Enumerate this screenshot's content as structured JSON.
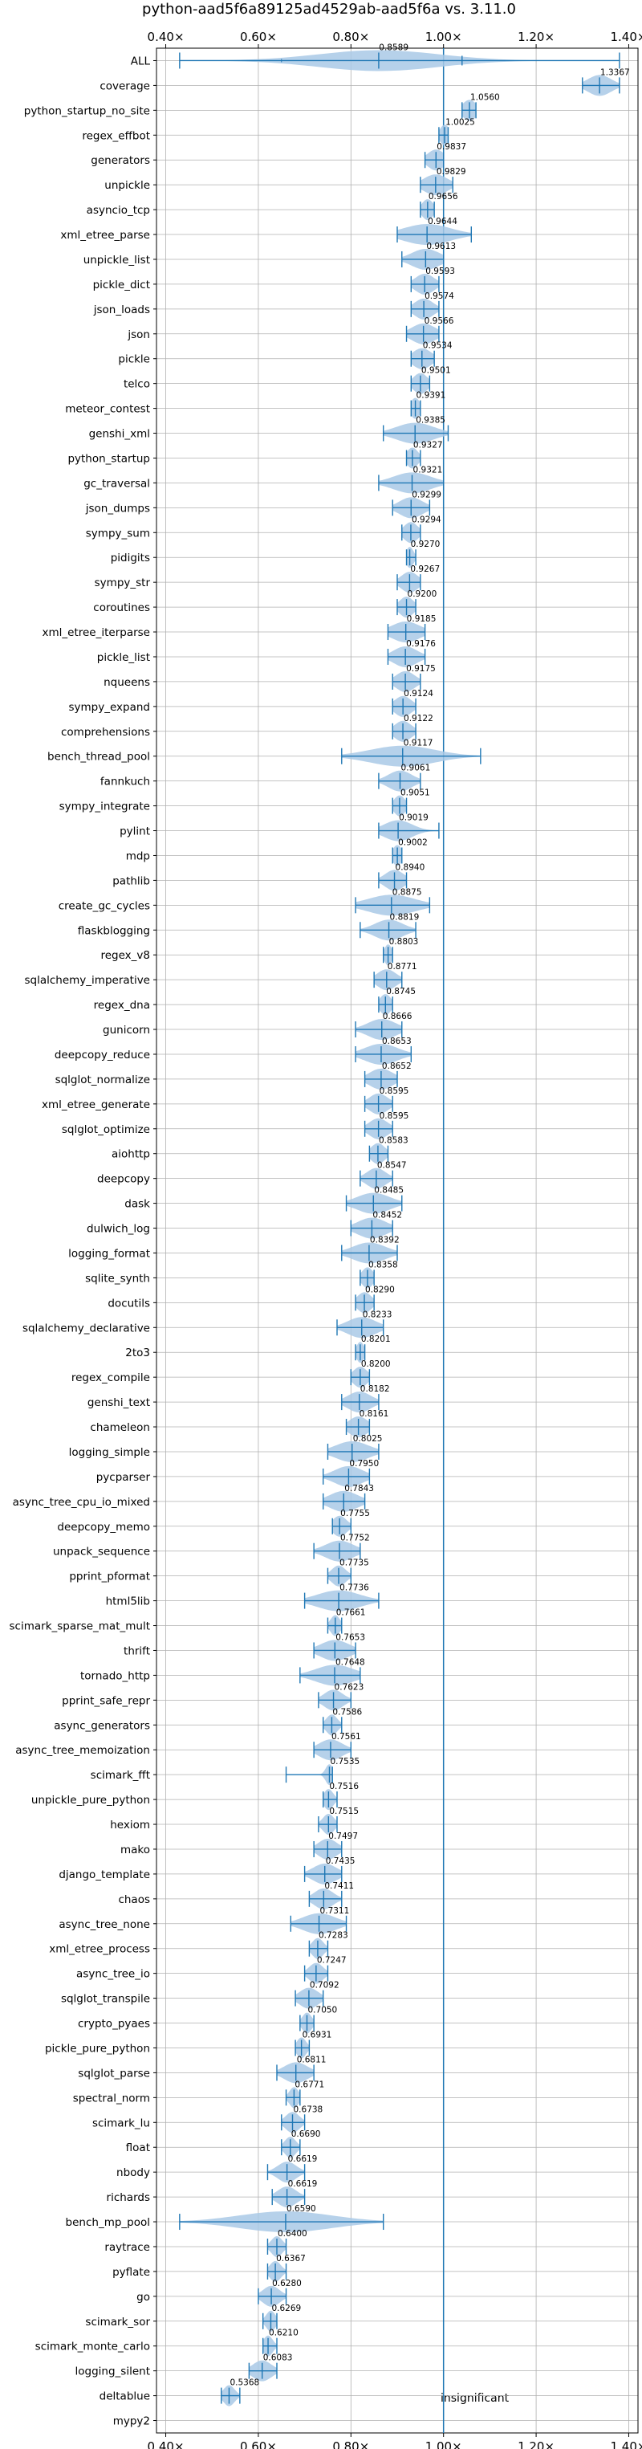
{
  "chart_data": {
    "type": "violin",
    "title": "python-aad5f6a89125ad4529ab-aad5f6a vs. 3.11.0",
    "xlim": [
      0.38,
      1.42
    ],
    "x_ticks": [
      0.4,
      0.6,
      0.8,
      1.0,
      1.2,
      1.4
    ],
    "x_tick_labels": [
      "0.40×",
      "0.60×",
      "0.80×",
      "1.00×",
      "1.20×",
      "1.40×"
    ],
    "reference_line": 1.0,
    "grid": true,
    "annotation": "insignificant",
    "colors": {
      "violin": "#a9c9e6",
      "errorbar": "#1f77b4",
      "reference": "#1f77b4",
      "grid": "#b0b0b0"
    },
    "benchmarks": [
      {
        "name": "ALL",
        "value": 0.8589,
        "label": "0.8589",
        "min": 0.43,
        "max": 1.38,
        "p_low": 0.65,
        "p_high": 1.04,
        "spread": 0.13,
        "mean": 0.86
      },
      {
        "name": "coverage",
        "value": 1.3367,
        "label": "1.3367",
        "min": 1.3,
        "max": 1.38,
        "spread": 0.025,
        "mean": 1.337
      },
      {
        "name": "python_startup_no_site",
        "value": 1.056,
        "label": "1.0560",
        "min": 1.04,
        "max": 1.07,
        "spread": 0.015,
        "mean": 1.056
      },
      {
        "name": "regex_effbot",
        "value": 1.0025,
        "label": "1.0025",
        "min": 0.99,
        "max": 1.01,
        "spread": 0.01,
        "mean": 1.0025
      },
      {
        "name": "generators",
        "value": 0.9837,
        "label": "0.9837",
        "min": 0.96,
        "max": 1.0,
        "spread": 0.018,
        "mean": 0.9837
      },
      {
        "name": "unpickle",
        "value": 0.9829,
        "label": "0.9829",
        "min": 0.95,
        "max": 1.02,
        "spread": 0.025,
        "mean": 0.9829
      },
      {
        "name": "asyncio_tcp",
        "value": 0.9656,
        "label": "0.9656",
        "min": 0.95,
        "max": 0.98,
        "spread": 0.012,
        "mean": 0.9656
      },
      {
        "name": "xml_etree_parse",
        "value": 0.9644,
        "label": "0.9644",
        "min": 0.9,
        "max": 1.06,
        "spread": 0.05,
        "mean": 0.9644
      },
      {
        "name": "unpickle_list",
        "value": 0.9613,
        "label": "0.9613",
        "min": 0.91,
        "max": 1.0,
        "spread": 0.03,
        "mean": 0.9613
      },
      {
        "name": "pickle_dict",
        "value": 0.9593,
        "label": "0.9593",
        "min": 0.93,
        "max": 0.99,
        "spread": 0.02,
        "mean": 0.9593
      },
      {
        "name": "json_loads",
        "value": 0.9574,
        "label": "0.9574",
        "min": 0.93,
        "max": 0.99,
        "spread": 0.02,
        "mean": 0.9574
      },
      {
        "name": "json",
        "value": 0.9566,
        "label": "0.9566",
        "min": 0.92,
        "max": 0.99,
        "spread": 0.025,
        "mean": 0.9566
      },
      {
        "name": "pickle",
        "value": 0.9534,
        "label": "0.9534",
        "min": 0.93,
        "max": 0.98,
        "spread": 0.02,
        "mean": 0.9534
      },
      {
        "name": "telco",
        "value": 0.9501,
        "label": "0.9501",
        "min": 0.93,
        "max": 0.97,
        "spread": 0.015,
        "mean": 0.9501
      },
      {
        "name": "meteor_contest",
        "value": 0.9391,
        "label": "0.9391",
        "min": 0.93,
        "max": 0.95,
        "spread": 0.01,
        "mean": 0.9391
      },
      {
        "name": "genshi_xml",
        "value": 0.9385,
        "label": "0.9385",
        "min": 0.87,
        "max": 1.01,
        "spread": 0.04,
        "mean": 0.9385
      },
      {
        "name": "python_startup",
        "value": 0.9327,
        "label": "0.9327",
        "min": 0.92,
        "max": 0.95,
        "spread": 0.012,
        "mean": 0.9327
      },
      {
        "name": "gc_traversal",
        "value": 0.9321,
        "label": "0.9321",
        "min": 0.86,
        "max": 1.0,
        "spread": 0.04,
        "mean": 0.9321
      },
      {
        "name": "json_dumps",
        "value": 0.9299,
        "label": "0.9299",
        "min": 0.89,
        "max": 0.97,
        "spread": 0.025,
        "mean": 0.9299
      },
      {
        "name": "sympy_sum",
        "value": 0.9294,
        "label": "0.9294",
        "min": 0.91,
        "max": 0.95,
        "spread": 0.015,
        "mean": 0.9294
      },
      {
        "name": "pidigits",
        "value": 0.927,
        "label": "0.9270",
        "min": 0.92,
        "max": 0.94,
        "spread": 0.008,
        "mean": 0.927
      },
      {
        "name": "sympy_str",
        "value": 0.9267,
        "label": "0.9267",
        "min": 0.9,
        "max": 0.95,
        "spread": 0.018,
        "mean": 0.9267
      },
      {
        "name": "coroutines",
        "value": 0.92,
        "label": "0.9200",
        "min": 0.9,
        "max": 0.94,
        "spread": 0.015,
        "mean": 0.92
      },
      {
        "name": "xml_etree_iterparse",
        "value": 0.9185,
        "label": "0.9185",
        "min": 0.88,
        "max": 0.96,
        "spread": 0.03,
        "mean": 0.9185
      },
      {
        "name": "pickle_list",
        "value": 0.9176,
        "label": "0.9176",
        "min": 0.88,
        "max": 0.96,
        "spread": 0.025,
        "mean": 0.9176
      },
      {
        "name": "nqueens",
        "value": 0.9175,
        "label": "0.9175",
        "min": 0.89,
        "max": 0.95,
        "spread": 0.02,
        "mean": 0.9175
      },
      {
        "name": "sympy_expand",
        "value": 0.9124,
        "label": "0.9124",
        "min": 0.89,
        "max": 0.94,
        "spread": 0.018,
        "mean": 0.9124
      },
      {
        "name": "comprehensions",
        "value": 0.9122,
        "label": "0.9122",
        "min": 0.89,
        "max": 0.94,
        "spread": 0.018,
        "mean": 0.9122
      },
      {
        "name": "bench_thread_pool",
        "value": 0.9117,
        "label": "0.9117",
        "min": 0.78,
        "max": 1.08,
        "spread": 0.07,
        "mean": 0.9117
      },
      {
        "name": "fannkuch",
        "value": 0.9061,
        "label": "0.9061",
        "min": 0.86,
        "max": 0.95,
        "spread": 0.025,
        "mean": 0.9061
      },
      {
        "name": "sympy_integrate",
        "value": 0.9051,
        "label": "0.9051",
        "min": 0.89,
        "max": 0.92,
        "spread": 0.012,
        "mean": 0.9051
      },
      {
        "name": "pylint",
        "value": 0.9019,
        "label": "0.9019",
        "min": 0.86,
        "max": 0.99,
        "spread": 0.03,
        "mean": 0.9019
      },
      {
        "name": "mdp",
        "value": 0.9002,
        "label": "0.9002",
        "min": 0.89,
        "max": 0.91,
        "spread": 0.01,
        "mean": 0.9002
      },
      {
        "name": "pathlib",
        "value": 0.894,
        "label": "0.8940",
        "min": 0.86,
        "max": 0.92,
        "spread": 0.02,
        "mean": 0.894
      },
      {
        "name": "create_gc_cycles",
        "value": 0.8875,
        "label": "0.8875",
        "min": 0.81,
        "max": 0.97,
        "spread": 0.05,
        "mean": 0.8875
      },
      {
        "name": "flaskblogging",
        "value": 0.8819,
        "label": "0.8819",
        "min": 0.82,
        "max": 0.94,
        "spread": 0.03,
        "mean": 0.8819
      },
      {
        "name": "regex_v8",
        "value": 0.8803,
        "label": "0.8803",
        "min": 0.87,
        "max": 0.89,
        "spread": 0.008,
        "mean": 0.8803
      },
      {
        "name": "sqlalchemy_imperative",
        "value": 0.8771,
        "label": "0.8771",
        "min": 0.85,
        "max": 0.91,
        "spread": 0.02,
        "mean": 0.8771
      },
      {
        "name": "regex_dna",
        "value": 0.8745,
        "label": "0.8745",
        "min": 0.86,
        "max": 0.89,
        "spread": 0.012,
        "mean": 0.8745
      },
      {
        "name": "gunicorn",
        "value": 0.8666,
        "label": "0.8666",
        "min": 0.81,
        "max": 0.91,
        "spread": 0.03,
        "mean": 0.8666
      },
      {
        "name": "deepcopy_reduce",
        "value": 0.8653,
        "label": "0.8653",
        "min": 0.81,
        "max": 0.93,
        "spread": 0.035,
        "mean": 0.8653
      },
      {
        "name": "sqlglot_normalize",
        "value": 0.8652,
        "label": "0.8652",
        "min": 0.83,
        "max": 0.9,
        "spread": 0.025,
        "mean": 0.8652
      },
      {
        "name": "xml_etree_generate",
        "value": 0.8595,
        "label": "0.8595",
        "min": 0.83,
        "max": 0.89,
        "spread": 0.02,
        "mean": 0.8595
      },
      {
        "name": "sqlglot_optimize",
        "value": 0.8595,
        "label": "0.8595",
        "min": 0.83,
        "max": 0.89,
        "spread": 0.02,
        "mean": 0.8595
      },
      {
        "name": "aiohttp",
        "value": 0.8583,
        "label": "0.8583",
        "min": 0.84,
        "max": 0.88,
        "spread": 0.015,
        "mean": 0.8583
      },
      {
        "name": "deepcopy",
        "value": 0.8547,
        "label": "0.8547",
        "min": 0.82,
        "max": 0.89,
        "spread": 0.02,
        "mean": 0.8547
      },
      {
        "name": "dask",
        "value": 0.8485,
        "label": "0.8485",
        "min": 0.79,
        "max": 0.91,
        "spread": 0.035,
        "mean": 0.8485
      },
      {
        "name": "dulwich_log",
        "value": 0.8452,
        "label": "0.8452",
        "min": 0.8,
        "max": 0.89,
        "spread": 0.03,
        "mean": 0.8452
      },
      {
        "name": "logging_format",
        "value": 0.8392,
        "label": "0.8392",
        "min": 0.78,
        "max": 0.9,
        "spread": 0.035,
        "mean": 0.8392
      },
      {
        "name": "sqlite_synth",
        "value": 0.8358,
        "label": "0.8358",
        "min": 0.82,
        "max": 0.85,
        "spread": 0.012,
        "mean": 0.8358
      },
      {
        "name": "docutils",
        "value": 0.829,
        "label": "0.8290",
        "min": 0.81,
        "max": 0.85,
        "spread": 0.015,
        "mean": 0.829
      },
      {
        "name": "sqlalchemy_declarative",
        "value": 0.8233,
        "label": "0.8233",
        "min": 0.77,
        "max": 0.87,
        "spread": 0.03,
        "mean": 0.8233
      },
      {
        "name": "2to3",
        "value": 0.8201,
        "label": "0.8201",
        "min": 0.81,
        "max": 0.83,
        "spread": 0.008,
        "mean": 0.8201
      },
      {
        "name": "regex_compile",
        "value": 0.82,
        "label": "0.8200",
        "min": 0.8,
        "max": 0.84,
        "spread": 0.015,
        "mean": 0.82
      },
      {
        "name": "genshi_text",
        "value": 0.8182,
        "label": "0.8182",
        "min": 0.78,
        "max": 0.86,
        "spread": 0.025,
        "mean": 0.8182
      },
      {
        "name": "chameleon",
        "value": 0.8161,
        "label": "0.8161",
        "min": 0.79,
        "max": 0.84,
        "spread": 0.02,
        "mean": 0.8161
      },
      {
        "name": "logging_simple",
        "value": 0.8025,
        "label": "0.8025",
        "min": 0.75,
        "max": 0.86,
        "spread": 0.035,
        "mean": 0.8025
      },
      {
        "name": "pycparser",
        "value": 0.795,
        "label": "0.7950",
        "min": 0.74,
        "max": 0.84,
        "spread": 0.03,
        "mean": 0.795
      },
      {
        "name": "async_tree_cpu_io_mixed",
        "value": 0.7843,
        "label": "0.7843",
        "min": 0.74,
        "max": 0.83,
        "spread": 0.03,
        "mean": 0.7843
      },
      {
        "name": "deepcopy_memo",
        "value": 0.7755,
        "label": "0.7755",
        "min": 0.76,
        "max": 0.8,
        "spread": 0.015,
        "mean": 0.7755
      },
      {
        "name": "unpack_sequence",
        "value": 0.7752,
        "label": "0.7752",
        "min": 0.72,
        "max": 0.82,
        "spread": 0.03,
        "mean": 0.7752
      },
      {
        "name": "pprint_pformat",
        "value": 0.7735,
        "label": "0.7735",
        "min": 0.75,
        "max": 0.8,
        "spread": 0.015,
        "mean": 0.7735
      },
      {
        "name": "html5lib",
        "value": 0.7736,
        "label": "0.7736",
        "min": 0.7,
        "max": 0.86,
        "spread": 0.045,
        "mean": 0.7736
      },
      {
        "name": "scimark_sparse_mat_mult",
        "value": 0.7661,
        "label": "0.7661",
        "min": 0.75,
        "max": 0.78,
        "spread": 0.01,
        "mean": 0.7661
      },
      {
        "name": "thrift",
        "value": 0.7653,
        "label": "0.7653",
        "min": 0.72,
        "max": 0.81,
        "spread": 0.03,
        "mean": 0.7653
      },
      {
        "name": "tornado_http",
        "value": 0.7648,
        "label": "0.7648",
        "min": 0.69,
        "max": 0.82,
        "spread": 0.04,
        "mean": 0.7648
      },
      {
        "name": "pprint_safe_repr",
        "value": 0.7623,
        "label": "0.7623",
        "min": 0.73,
        "max": 0.8,
        "spread": 0.02,
        "mean": 0.7623
      },
      {
        "name": "async_generators",
        "value": 0.7586,
        "label": "0.7586",
        "min": 0.74,
        "max": 0.78,
        "spread": 0.012,
        "mean": 0.7586
      },
      {
        "name": "async_tree_memoization",
        "value": 0.7561,
        "label": "0.7561",
        "min": 0.72,
        "max": 0.8,
        "spread": 0.025,
        "mean": 0.7561
      },
      {
        "name": "scimark_fft",
        "value": 0.7535,
        "label": "0.7535",
        "min": 0.66,
        "max": 0.76,
        "spread": 0.008,
        "mean": 0.7535
      },
      {
        "name": "unpickle_pure_python",
        "value": 0.7516,
        "label": "0.7516",
        "min": 0.74,
        "max": 0.77,
        "spread": 0.01,
        "mean": 0.7516
      },
      {
        "name": "hexiom",
        "value": 0.7515,
        "label": "0.7515",
        "min": 0.73,
        "max": 0.77,
        "spread": 0.012,
        "mean": 0.7515
      },
      {
        "name": "mako",
        "value": 0.7497,
        "label": "0.7497",
        "min": 0.72,
        "max": 0.78,
        "spread": 0.02,
        "mean": 0.7497
      },
      {
        "name": "django_template",
        "value": 0.7435,
        "label": "0.7435",
        "min": 0.7,
        "max": 0.78,
        "spread": 0.025,
        "mean": 0.7435
      },
      {
        "name": "chaos",
        "value": 0.7411,
        "label": "0.7411",
        "min": 0.71,
        "max": 0.78,
        "spread": 0.02,
        "mean": 0.7411
      },
      {
        "name": "async_tree_none",
        "value": 0.7311,
        "label": "0.7311",
        "min": 0.67,
        "max": 0.79,
        "spread": 0.035,
        "mean": 0.7311
      },
      {
        "name": "xml_etree_process",
        "value": 0.7283,
        "label": "0.7283",
        "min": 0.71,
        "max": 0.75,
        "spread": 0.012,
        "mean": 0.7283
      },
      {
        "name": "async_tree_io",
        "value": 0.7247,
        "label": "0.7247",
        "min": 0.7,
        "max": 0.75,
        "spread": 0.015,
        "mean": 0.7247
      },
      {
        "name": "sqlglot_transpile",
        "value": 0.7092,
        "label": "0.7092",
        "min": 0.68,
        "max": 0.74,
        "spread": 0.02,
        "mean": 0.7092
      },
      {
        "name": "crypto_pyaes",
        "value": 0.705,
        "label": "0.7050",
        "min": 0.69,
        "max": 0.72,
        "spread": 0.01,
        "mean": 0.705
      },
      {
        "name": "pickle_pure_python",
        "value": 0.6931,
        "label": "0.6931",
        "min": 0.68,
        "max": 0.71,
        "spread": 0.01,
        "mean": 0.6931
      },
      {
        "name": "sqlglot_parse",
        "value": 0.6811,
        "label": "0.6811",
        "min": 0.64,
        "max": 0.72,
        "spread": 0.025,
        "mean": 0.6811
      },
      {
        "name": "spectral_norm",
        "value": 0.6771,
        "label": "0.6771",
        "min": 0.66,
        "max": 0.69,
        "spread": 0.01,
        "mean": 0.6771
      },
      {
        "name": "scimark_lu",
        "value": 0.6738,
        "label": "0.6738",
        "min": 0.65,
        "max": 0.7,
        "spread": 0.015,
        "mean": 0.6738
      },
      {
        "name": "float",
        "value": 0.669,
        "label": "0.6690",
        "min": 0.65,
        "max": 0.69,
        "spread": 0.012,
        "mean": 0.669
      },
      {
        "name": "nbody",
        "value": 0.6619,
        "label": "0.6619",
        "min": 0.62,
        "max": 0.7,
        "spread": 0.02,
        "mean": 0.6619
      },
      {
        "name": "richards",
        "value": 0.6619,
        "label": "0.6619",
        "min": 0.63,
        "max": 0.7,
        "spread": 0.02,
        "mean": 0.6619
      },
      {
        "name": "bench_mp_pool",
        "value": 0.659,
        "label": "0.6590",
        "min": 0.43,
        "max": 0.87,
        "spread": 0.1,
        "mean": 0.659
      },
      {
        "name": "raytrace",
        "value": 0.64,
        "label": "0.6400",
        "min": 0.62,
        "max": 0.66,
        "spread": 0.012,
        "mean": 0.64
      },
      {
        "name": "pyflate",
        "value": 0.6367,
        "label": "0.6367",
        "min": 0.62,
        "max": 0.66,
        "spread": 0.012,
        "mean": 0.6367
      },
      {
        "name": "go",
        "value": 0.628,
        "label": "0.6280",
        "min": 0.6,
        "max": 0.66,
        "spread": 0.018,
        "mean": 0.628
      },
      {
        "name": "scimark_sor",
        "value": 0.6269,
        "label": "0.6269",
        "min": 0.61,
        "max": 0.64,
        "spread": 0.01,
        "mean": 0.6269
      },
      {
        "name": "scimark_monte_carlo",
        "value": 0.621,
        "label": "0.6210",
        "min": 0.61,
        "max": 0.64,
        "spread": 0.01,
        "mean": 0.621
      },
      {
        "name": "logging_silent",
        "value": 0.6083,
        "label": "0.6083",
        "min": 0.58,
        "max": 0.64,
        "spread": 0.02,
        "mean": 0.6083
      },
      {
        "name": "deltablue",
        "value": 0.5368,
        "label": "0.5368",
        "min": 0.52,
        "max": 0.56,
        "spread": 0.012,
        "mean": 0.5368
      },
      {
        "name": "mypy2",
        "value": null,
        "label": "",
        "min": null,
        "max": null,
        "spread": null,
        "mean": null
      }
    ]
  }
}
